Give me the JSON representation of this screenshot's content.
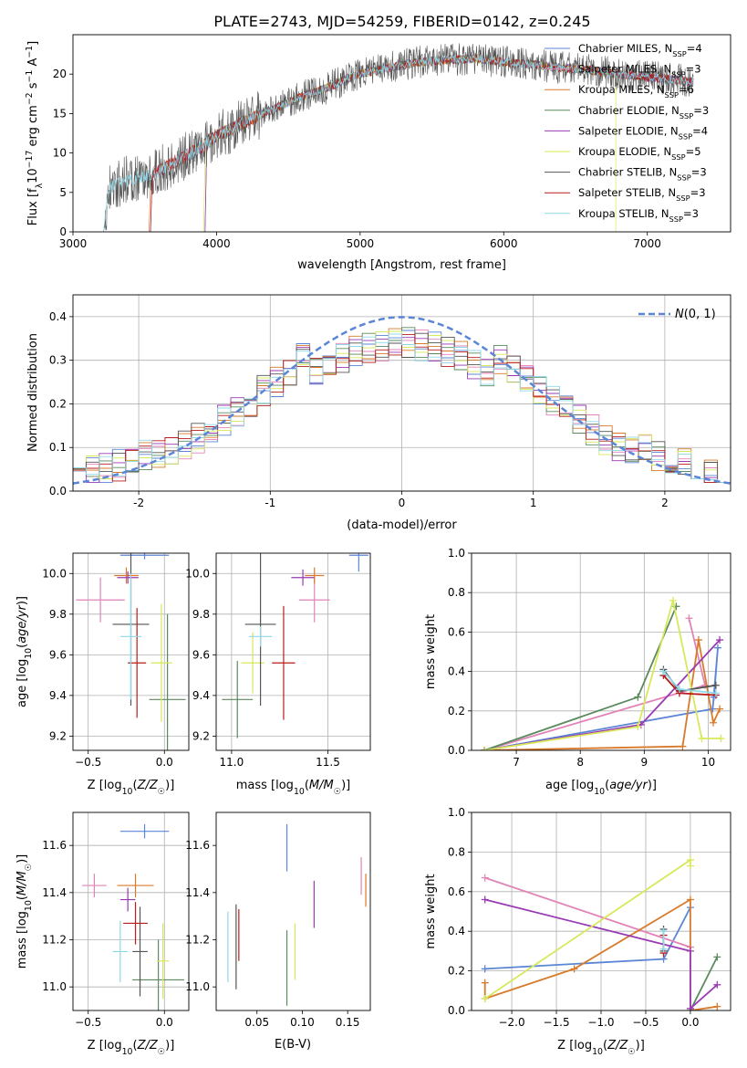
{
  "figure": {
    "title": "PLATE=2743, MJD=54259, FIBERID=0142, z=0.245"
  },
  "colors": {
    "chabrier_miles": "#5b86d6",
    "salpeter_miles": "#e283b8",
    "kroupa_miles": "#d97a2b",
    "chabrier_elodie": "#5a8a5e",
    "salpeter_elodie": "#9a3ab3",
    "kroupa_elodie": "#d8e85a",
    "chabrier_stelib": "#555555",
    "salpeter_stelib": "#b81c1c",
    "kroupa_stelib": "#8fd8e8",
    "gauss": "#5b86d6",
    "grid": "#b0b0b0"
  },
  "chart_data": [
    {
      "id": "spectrum",
      "type": "line",
      "xlabel": "wavelength [Angstrom, rest frame]",
      "ylabel": "Flux [f_λ 10^-17 erg cm^-2 s^-1 A^-1]",
      "xlim": [
        3000,
        7580
      ],
      "ylim": [
        0,
        25
      ],
      "xticks": [
        3000,
        4000,
        5000,
        6000,
        7000
      ],
      "yticks": [
        0,
        5,
        10,
        15,
        20
      ],
      "grid": false,
      "legend_position": "upper-right",
      "envelope": {
        "x": [
          3210,
          3250,
          3400,
          3500,
          3600,
          3700,
          3800,
          3900,
          4000,
          4100,
          4200,
          4300,
          4400,
          4500,
          4600,
          4700,
          4800,
          4900,
          5000,
          5200,
          5400,
          5600,
          5800,
          6000,
          6200,
          6400,
          6600,
          6800,
          7000,
          7200,
          7320
        ],
        "y": [
          0,
          5.6,
          6.8,
          7.0,
          7.8,
          8.8,
          9.8,
          10.8,
          12.2,
          13.0,
          14.0,
          14.8,
          15.6,
          16.4,
          17.2,
          17.8,
          18.5,
          19.4,
          20.0,
          20.8,
          21.5,
          21.8,
          22.0,
          21.5,
          21.2,
          20.8,
          20.5,
          20.0,
          19.6,
          19.3,
          19.0
        ]
      },
      "series": [
        {
          "name": "Chabrier MILES, N_SSP=4",
          "key": "chabrier_miles",
          "start": 3540
        },
        {
          "name": "Salpeter MILES, N_SSP=3",
          "key": "salpeter_miles",
          "start": 3540
        },
        {
          "name": "Kroupa MILES, N_SSP=6",
          "key": "kroupa_miles",
          "start": 3530
        },
        {
          "name": "Chabrier ELODIE, N_SSP=3",
          "key": "chabrier_elodie",
          "start": 3920
        },
        {
          "name": "Salpeter ELODIE, N_SSP=4",
          "key": "salpeter_elodie",
          "start": 3920
        },
        {
          "name": "Kroupa ELODIE, N_SSP=5",
          "key": "kroupa_elodie",
          "start": 3910
        },
        {
          "name": "Chabrier STELIB, N_SSP=3",
          "key": "chabrier_stelib",
          "start": 3210
        },
        {
          "name": "Salpeter STELIB, N_SSP=3",
          "key": "salpeter_stelib",
          "start": 3540
        },
        {
          "name": "Kroupa STELIB, N_SSP=3",
          "key": "kroupa_stelib",
          "start": 3210
        }
      ]
    },
    {
      "id": "residuals",
      "type": "line",
      "xlabel": "(data-model)/error",
      "ylabel": "Normed distribution",
      "xlim": [
        -2.5,
        2.5
      ],
      "ylim": [
        0,
        0.45
      ],
      "xticks": [
        -2,
        -1,
        0,
        1,
        2
      ],
      "yticks": [
        0.0,
        0.1,
        0.2,
        0.3,
        0.4
      ],
      "grid": true,
      "bins": 50,
      "legend_label": "N(0,1)",
      "legend_position": "upper-right"
    },
    {
      "id": "age_vs_Z",
      "type": "scatter",
      "xlabel": "Z [log10(Z/Z☉)]",
      "ylabel": "age  [log10(age/yr)]",
      "xlim": [
        -0.6,
        0.16
      ],
      "ylim": [
        9.13,
        10.1
      ],
      "xticks": [
        -0.5,
        0.0
      ],
      "yticks": [
        9.2,
        9.4,
        9.6,
        9.8,
        10.0
      ],
      "grid": true,
      "points": [
        {
          "key": "chabrier_miles",
          "x": -0.13,
          "xerr": 0.16,
          "y": 10.09,
          "yerr": 0.02
        },
        {
          "key": "salpeter_miles",
          "x": -0.42,
          "xerr": 0.16,
          "y": 9.87,
          "yerr": 0.11
        },
        {
          "key": "kroupa_miles",
          "x": -0.25,
          "xerr": 0.08,
          "y": 9.99,
          "yerr": 0.04
        },
        {
          "key": "chabrier_elodie",
          "x": 0.02,
          "xerr": 0.12,
          "y": 9.38,
          "yerr": 0.42
        },
        {
          "key": "salpeter_elodie",
          "x": -0.24,
          "xerr": 0.07,
          "y": 9.98,
          "yerr": 0.03
        },
        {
          "key": "kroupa_elodie",
          "x": -0.02,
          "xerr": 0.07,
          "y": 9.56,
          "yerr": 0.29
        },
        {
          "key": "chabrier_stelib",
          "x": -0.22,
          "xerr": 0.12,
          "y": 9.75,
          "yerr": 0.4
        },
        {
          "key": "salpeter_stelib",
          "x": -0.18,
          "xerr": 0.06,
          "y": 9.56,
          "yerr": 0.27
        },
        {
          "key": "kroupa_stelib",
          "x": -0.22,
          "xerr": 0.07,
          "y": 9.69,
          "yerr": 0.31
        }
      ]
    },
    {
      "id": "age_vs_mass",
      "type": "scatter",
      "xlabel": "mass [log10(M/M☉)]",
      "xlim": [
        10.92,
        11.72
      ],
      "ylim": [
        9.13,
        10.1
      ],
      "xticks": [
        11.0,
        11.5
      ],
      "yticks": [
        9.2,
        9.4,
        9.6,
        9.8,
        10.0
      ],
      "grid": true,
      "points": [
        {
          "key": "chabrier_miles",
          "x": 11.66,
          "xerr": 0.05,
          "y": 10.09,
          "yerr": 0.08
        },
        {
          "key": "salpeter_miles",
          "x": 11.43,
          "xerr": 0.08,
          "y": 9.87,
          "yerr": 0.11
        },
        {
          "key": "kroupa_miles",
          "x": 11.43,
          "xerr": 0.05,
          "y": 9.99,
          "yerr": 0.04
        },
        {
          "key": "chabrier_elodie",
          "x": 11.03,
          "xerr": 0.08,
          "y": 9.38,
          "yerr": 0.19
        },
        {
          "key": "salpeter_elodie",
          "x": 11.37,
          "xerr": 0.06,
          "y": 9.98,
          "yerr": 0.04
        },
        {
          "key": "kroupa_elodie",
          "x": 11.11,
          "xerr": 0.06,
          "y": 9.56,
          "yerr": 0.15
        },
        {
          "key": "chabrier_stelib",
          "x": 11.15,
          "xerr": 0.08,
          "y": 9.75,
          "yerr": 0.4
        },
        {
          "key": "salpeter_stelib",
          "x": 11.27,
          "xerr": 0.06,
          "y": 9.56,
          "yerr": 0.28
        },
        {
          "key": "kroupa_stelib",
          "x": 11.15,
          "xerr": 0.06,
          "y": 9.69,
          "yerr": 0.05
        }
      ]
    },
    {
      "id": "mass_weight_vs_age",
      "type": "line",
      "xlabel": "age  [log10(age/yr)]",
      "ylabel": "mass weight",
      "xlim": [
        6.3,
        10.35
      ],
      "ylim": [
        0,
        1.0
      ],
      "xticks": [
        7,
        8,
        9,
        10
      ],
      "yticks": [
        0.0,
        0.2,
        0.4,
        0.6,
        0.8,
        1.0
      ],
      "grid": true,
      "series": [
        {
          "key": "chabrier_miles",
          "x": [
            6.5,
            10.07,
            10.15,
            10.09
          ],
          "y": [
            0.0,
            0.21,
            0.52,
            0.27
          ]
        },
        {
          "key": "salpeter_miles",
          "x": [
            6.5,
            9.95,
            9.7
          ],
          "y": [
            0.0,
            0.33,
            0.67
          ]
        },
        {
          "key": "kroupa_miles",
          "x": [
            6.5,
            9.6,
            9.85,
            10.08,
            10.18
          ],
          "y": [
            0.0,
            0.02,
            0.56,
            0.14,
            0.21
          ]
        },
        {
          "key": "chabrier_elodie",
          "x": [
            6.5,
            8.9,
            9.5
          ],
          "y": [
            0.0,
            0.27,
            0.73
          ]
        },
        {
          "key": "salpeter_elodie",
          "x": [
            6.5,
            8.95,
            10.18
          ],
          "y": [
            0.0,
            0.13,
            0.56
          ]
        },
        {
          "key": "kroupa_elodie",
          "x": [
            6.5,
            8.9,
            9.45,
            9.9,
            10.2
          ],
          "y": [
            0.0,
            0.12,
            0.76,
            0.06,
            0.06
          ]
        },
        {
          "key": "chabrier_stelib",
          "x": [
            9.3,
            9.55,
            10.12
          ],
          "y": [
            0.41,
            0.3,
            0.33
          ]
        },
        {
          "key": "salpeter_stelib",
          "x": [
            9.3,
            9.55,
            10.12
          ],
          "y": [
            0.38,
            0.29,
            0.28
          ]
        },
        {
          "key": "kroupa_stelib",
          "x": [
            9.3,
            9.55,
            10.12
          ],
          "y": [
            0.4,
            0.31,
            0.29
          ]
        }
      ]
    },
    {
      "id": "mass_vs_Z",
      "type": "scatter",
      "xlabel": "Z [log10(Z/Z☉)]",
      "ylabel": "mass [log10(M/M☉)]",
      "xlim": [
        -0.6,
        0.16
      ],
      "ylim": [
        10.9,
        11.74
      ],
      "xticks": [
        -0.5,
        0.0
      ],
      "yticks": [
        11.0,
        11.2,
        11.4,
        11.6
      ],
      "grid": true,
      "points": [
        {
          "key": "chabrier_miles",
          "x": -0.13,
          "xerr": 0.16,
          "y": 11.66,
          "yerr": 0.03
        },
        {
          "key": "salpeter_miles",
          "x": -0.46,
          "xerr": 0.08,
          "y": 11.43,
          "yerr": 0.05
        },
        {
          "key": "kroupa_miles",
          "x": -0.19,
          "xerr": 0.12,
          "y": 11.43,
          "yerr": 0.05
        },
        {
          "key": "chabrier_elodie",
          "x": -0.04,
          "xerr": 0.17,
          "y": 11.03,
          "yerr": 0.17
        },
        {
          "key": "salpeter_elodie",
          "x": -0.24,
          "xerr": 0.05,
          "y": 11.37,
          "yerr": 0.05
        },
        {
          "key": "kroupa_elodie",
          "x": -0.01,
          "xerr": 0.04,
          "y": 11.11,
          "yerr": 0.16
        },
        {
          "key": "chabrier_stelib",
          "x": -0.16,
          "xerr": 0.05,
          "y": 11.15,
          "yerr": 0.19
        },
        {
          "key": "salpeter_stelib",
          "x": -0.19,
          "xerr": 0.08,
          "y": 11.27,
          "yerr": 0.09
        },
        {
          "key": "kroupa_stelib",
          "x": -0.29,
          "xerr": 0.05,
          "y": 11.15,
          "yerr": 0.13
        }
      ]
    },
    {
      "id": "mass_vs_EBV",
      "type": "scatter",
      "xlabel": "E(B-V)",
      "xlim": [
        0.005,
        0.175
      ],
      "ylim": [
        10.9,
        11.74
      ],
      "xticks": [
        0.05,
        0.1,
        0.15
      ],
      "yticks": [
        11.0,
        11.2,
        11.4,
        11.6
      ],
      "grid": false,
      "points": [
        {
          "key": "chabrier_miles",
          "x": 0.083,
          "y": 11.59,
          "yerr": 0.1
        },
        {
          "key": "salpeter_miles",
          "x": 0.165,
          "y": 11.47,
          "yerr": 0.08
        },
        {
          "key": "kroupa_miles",
          "x": 0.17,
          "y": 11.41,
          "yerr": 0.07
        },
        {
          "key": "chabrier_elodie",
          "x": 0.083,
          "y": 11.08,
          "yerr": 0.16
        },
        {
          "key": "salpeter_elodie",
          "x": 0.113,
          "y": 11.35,
          "yerr": 0.1
        },
        {
          "key": "kroupa_elodie",
          "x": 0.092,
          "y": 11.15,
          "yerr": 0.12
        },
        {
          "key": "chabrier_stelib",
          "x": 0.027,
          "y": 11.17,
          "yerr": 0.18
        },
        {
          "key": "salpeter_stelib",
          "x": 0.03,
          "y": 11.22,
          "yerr": 0.11
        },
        {
          "key": "kroupa_stelib",
          "x": 0.018,
          "y": 11.17,
          "yerr": 0.15
        }
      ]
    },
    {
      "id": "mass_weight_vs_Z",
      "type": "line",
      "xlabel": "Z [log10(Z/Z☉)]",
      "ylabel": "mass weight",
      "xlim": [
        -2.45,
        0.45
      ],
      "ylim": [
        0,
        1.0
      ],
      "xticks": [
        -2.0,
        -1.5,
        -1.0,
        -0.5,
        0.0
      ],
      "yticks": [
        0.0,
        0.2,
        0.4,
        0.6,
        0.8,
        1.0
      ],
      "grid": true,
      "series": [
        {
          "key": "chabrier_miles",
          "x": [
            -2.3,
            -0.3,
            0.0
          ],
          "y": [
            0.21,
            0.26,
            0.52
          ]
        },
        {
          "key": "salpeter_miles",
          "x": [
            -2.3,
            0.0
          ],
          "y": [
            0.67,
            0.32
          ]
        },
        {
          "key": "kroupa_miles",
          "x": [
            -2.3,
            -2.3,
            -1.3,
            0.0,
            0.0,
            0.3
          ],
          "y": [
            0.14,
            0.06,
            0.21,
            0.56,
            0.0,
            0.02
          ]
        },
        {
          "key": "chabrier_elodie",
          "x": [
            0.0,
            0.3
          ],
          "y": [
            0.0,
            0.27
          ]
        },
        {
          "key": "salpeter_elodie",
          "x": [
            -2.3,
            0.0,
            0.0,
            0.3
          ],
          "y": [
            0.56,
            0.3,
            0.01,
            0.13
          ]
        },
        {
          "key": "kroupa_elodie",
          "x": [
            -2.3,
            0.0,
            0.0
          ],
          "y": [
            0.06,
            0.76,
            0.73
          ]
        },
        {
          "key": "chabrier_stelib",
          "x": [
            -0.3,
            -0.3
          ],
          "y": [
            0.41,
            0.3
          ]
        },
        {
          "key": "salpeter_stelib",
          "x": [
            -0.3,
            -0.3
          ],
          "y": [
            0.38,
            0.29
          ]
        },
        {
          "key": "kroupa_stelib",
          "x": [
            -0.3,
            -0.3
          ],
          "y": [
            0.4,
            0.31
          ]
        }
      ]
    }
  ]
}
